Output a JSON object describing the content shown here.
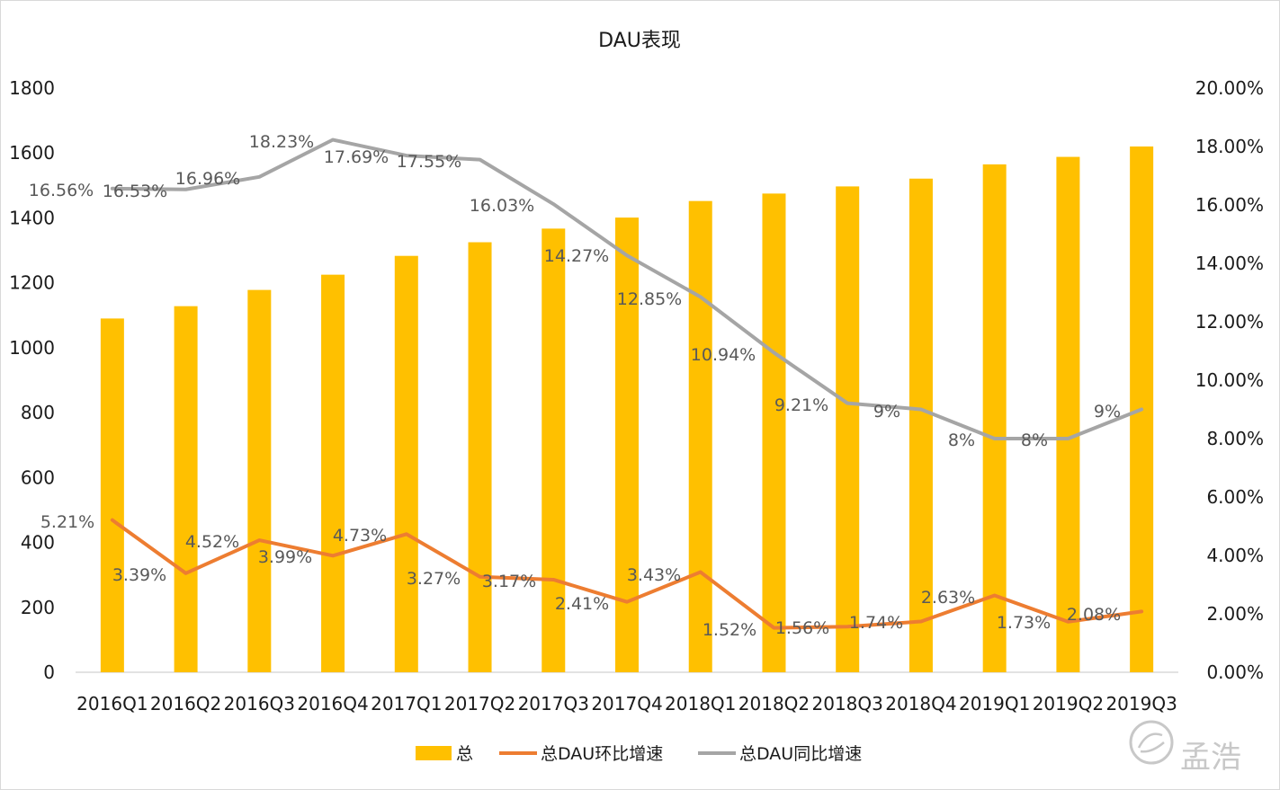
{
  "chart_data": {
    "type": "bar",
    "title": "DAU表现",
    "categories": [
      "2016Q1",
      "2016Q2",
      "2016Q3",
      "2016Q4",
      "2017Q1",
      "2017Q2",
      "2017Q3",
      "2017Q4",
      "2018Q1",
      "2018Q2",
      "2018Q3",
      "2018Q4",
      "2019Q1",
      "2019Q2",
      "2019Q3"
    ],
    "y_left": {
      "min": 0,
      "max": 1800,
      "ticks": [
        "0",
        "200",
        "400",
        "600",
        "800",
        "1000",
        "1200",
        "1400",
        "1600",
        "1800"
      ]
    },
    "y_right": {
      "min": 0,
      "max": 0.2,
      "ticks": [
        "0.00%",
        "2.00%",
        "4.00%",
        "6.00%",
        "8.00%",
        "10.00%",
        "12.00%",
        "14.00%",
        "16.00%",
        "18.00%",
        "20.00%"
      ]
    },
    "series": [
      {
        "name": "总",
        "type": "bar",
        "axis": "left",
        "color": "#FFC000",
        "values": [
          1090,
          1128,
          1178,
          1225,
          1283,
          1325,
          1367,
          1401,
          1452,
          1475,
          1497,
          1521,
          1565,
          1588,
          1620
        ]
      },
      {
        "name": "总DAU环比增速",
        "type": "line",
        "axis": "right",
        "color": "#ED7D31",
        "values": [
          0.0521,
          0.0339,
          0.0452,
          0.0399,
          0.0473,
          0.0327,
          0.0317,
          0.0241,
          0.0343,
          0.0152,
          0.0156,
          0.0174,
          0.0263,
          0.0173,
          0.0208
        ],
        "labels": [
          "5.21%",
          "3.39%",
          "4.52%",
          "3.99%",
          "4.73%",
          "3.27%",
          "3.17%",
          "2.41%",
          "3.43%",
          "1.52%",
          "1.56%",
          "1.74%",
          "2.63%",
          "1.73%",
          "2.08%"
        ]
      },
      {
        "name": "总DAU同比增速",
        "type": "line",
        "axis": "right",
        "color": "#A5A5A5",
        "values": [
          0.1656,
          0.1653,
          0.1696,
          0.1823,
          0.1769,
          0.1755,
          0.1603,
          0.1427,
          0.1285,
          0.1094,
          0.0921,
          0.09,
          0.08,
          0.08,
          0.09
        ],
        "labels": [
          "16.56%",
          "16.53%",
          "16.96%",
          "18.23%",
          "17.69%",
          "17.55%",
          "16.03%",
          "14.27%",
          "12.85%",
          "10.94%",
          "9.21%",
          "9%",
          "8%",
          "8%",
          "9%"
        ]
      }
    ],
    "legend": {
      "position": "bottom"
    },
    "grid": false
  },
  "watermark": {
    "text": "孟浩"
  }
}
